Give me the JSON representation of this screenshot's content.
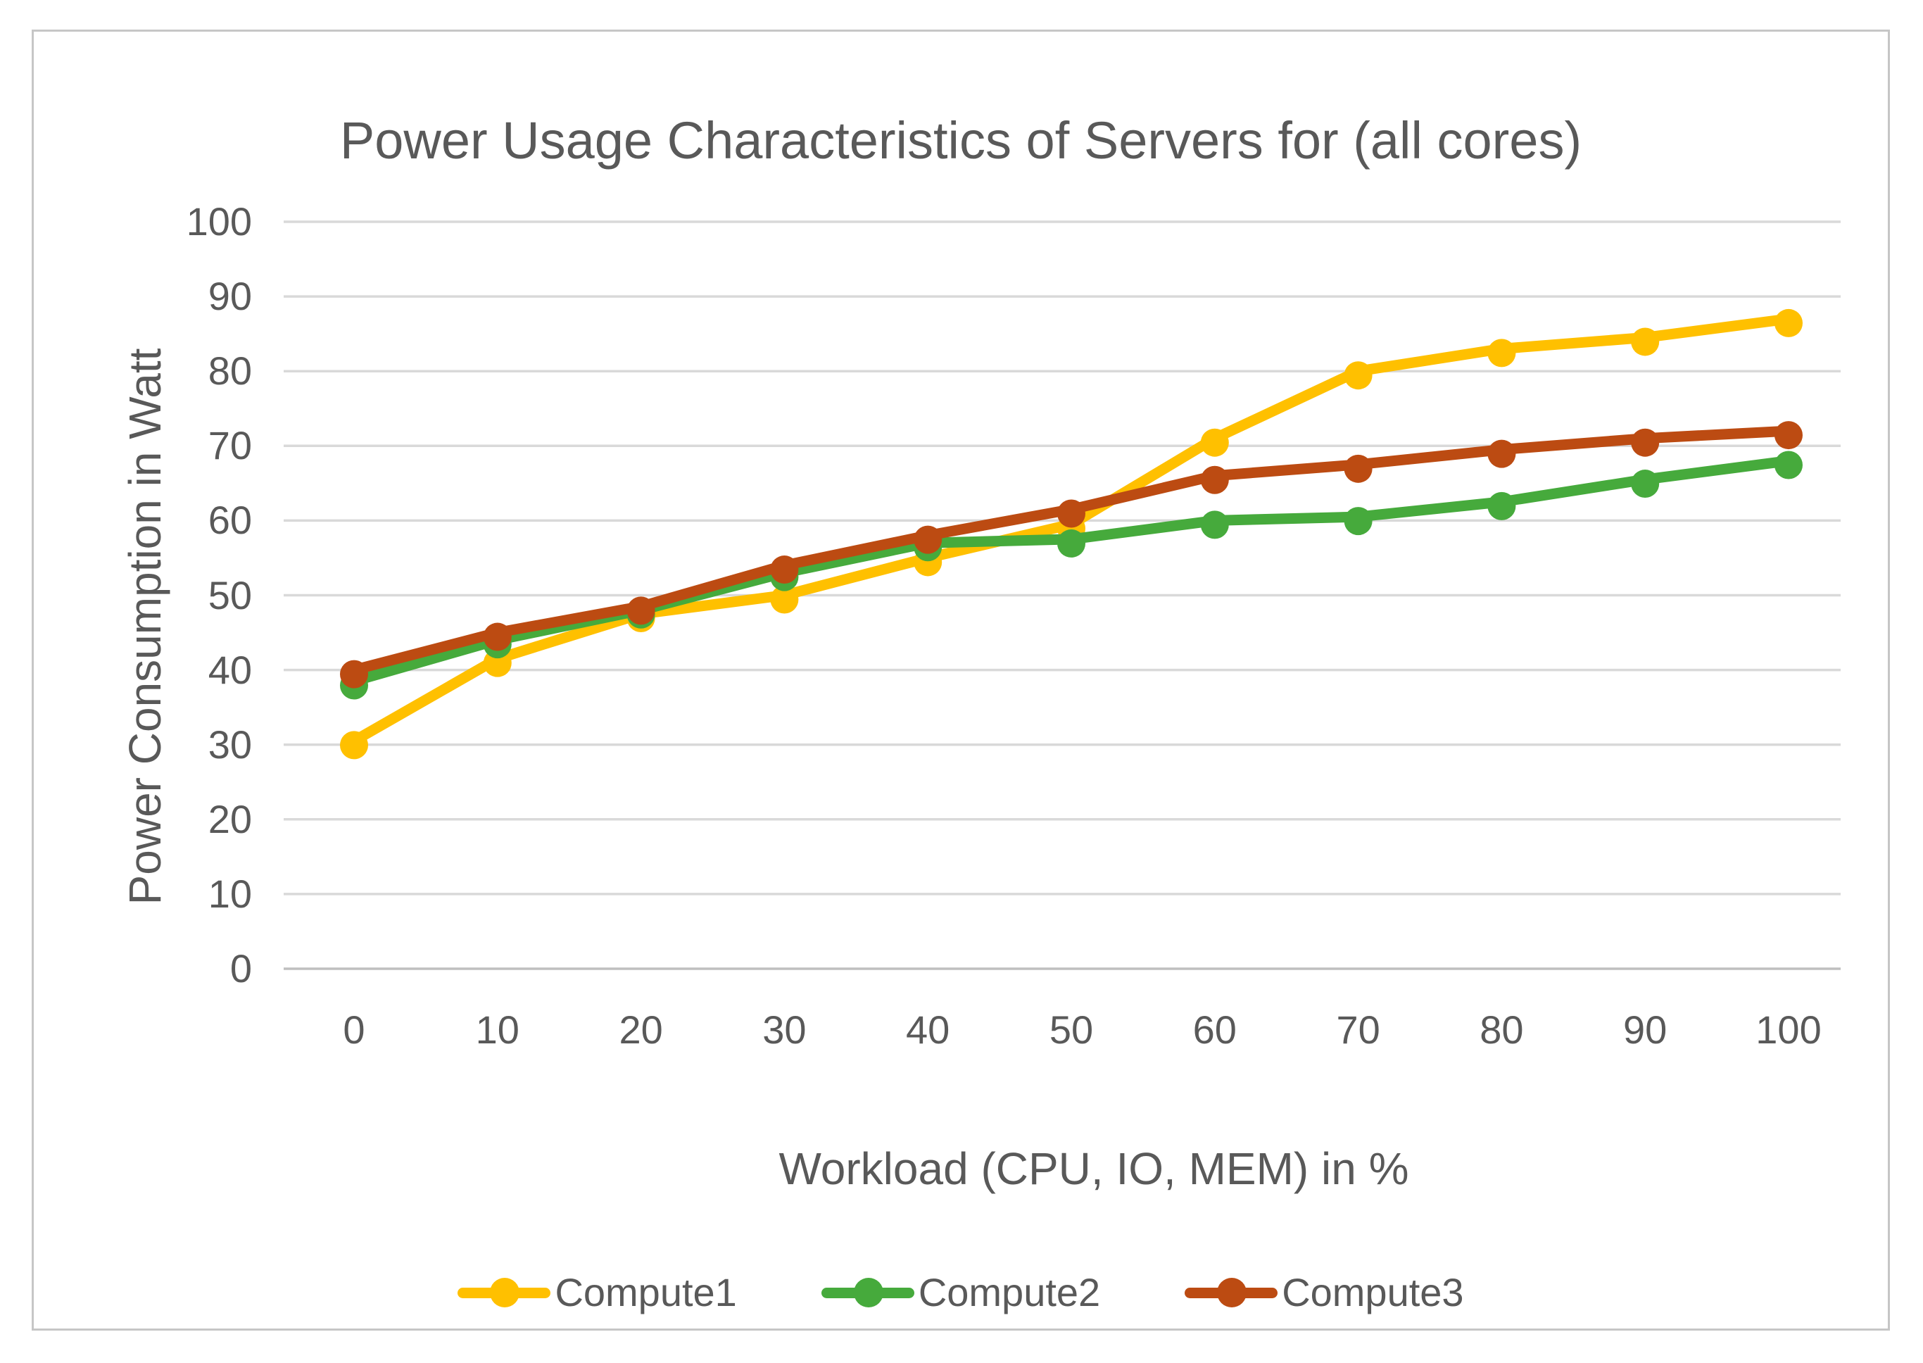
{
  "chart_data": {
    "type": "line",
    "title": "Power Usage Characteristics of Servers for (all cores)",
    "xlabel": "Workload (CPU, IO, MEM) in %",
    "ylabel": "Power Consumption in Watt",
    "x": [
      0,
      10,
      20,
      30,
      40,
      50,
      60,
      70,
      80,
      90,
      100
    ],
    "xticks": [
      "0",
      "10",
      "20",
      "30",
      "40",
      "50",
      "60",
      "70",
      "80",
      "90",
      "100"
    ],
    "yticks": [
      "0",
      "10",
      "20",
      "30",
      "40",
      "50",
      "60",
      "70",
      "80",
      "90",
      "100"
    ],
    "ylim": [
      0,
      100
    ],
    "xlim": [
      0,
      100
    ],
    "grid": "horizontal",
    "legend_position": "bottom",
    "series": [
      {
        "name": "Compute1",
        "color": "#FFC000",
        "values": [
          30.5,
          41.5,
          47.5,
          50,
          55,
          59.5,
          71,
          80,
          83,
          84.5,
          87
        ]
      },
      {
        "name": "Compute2",
        "color": "#46AA3C",
        "values": [
          38.5,
          44,
          48,
          53,
          57,
          57.5,
          60,
          60.5,
          62.5,
          65.5,
          68
        ]
      },
      {
        "name": "Compute3",
        "color": "#BC4B12",
        "values": [
          40,
          45,
          48.5,
          54,
          58,
          61.5,
          66,
          67.5,
          69.5,
          71,
          72
        ]
      }
    ]
  },
  "ui_colors": {
    "gridline": "#D9D9D9",
    "baseline": "#BFBFBF",
    "text": "#595959",
    "frame_border": "#C6C6C6",
    "background": "#FFFFFF"
  }
}
